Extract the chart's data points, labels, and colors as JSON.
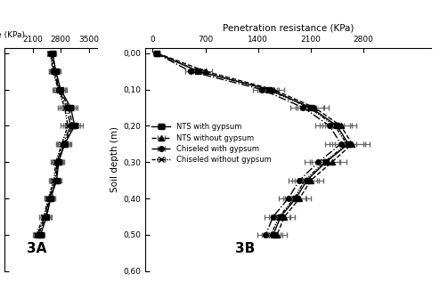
{
  "depths": [
    0.0,
    0.05,
    0.1,
    0.15,
    0.2,
    0.25,
    0.3,
    0.35,
    0.4,
    0.45,
    0.5
  ],
  "panel_A": {
    "label": "3A",
    "xlim": [
      1400,
      3700
    ],
    "xticks": [
      2100,
      2800,
      3500
    ],
    "series": {
      "NTS_with": {
        "values": [
          2600,
          2680,
          2800,
          3050,
          3150,
          2900,
          2750,
          2700,
          2550,
          2450,
          2300
        ],
        "xerr": [
          80,
          120,
          150,
          180,
          200,
          160,
          140,
          130,
          110,
          120,
          100
        ]
      },
      "NTS_without": {
        "values": [
          2580,
          2650,
          2780,
          3000,
          3100,
          2880,
          2730,
          2680,
          2530,
          2430,
          2250
        ],
        "xerr": [
          75,
          115,
          145,
          175,
          195,
          155,
          135,
          125,
          105,
          115,
          95
        ]
      },
      "Chi_with": {
        "values": [
          2560,
          2630,
          2760,
          2950,
          3050,
          2860,
          2710,
          2660,
          2510,
          2410,
          2220
        ],
        "xerr": [
          70,
          110,
          140,
          170,
          190,
          150,
          130,
          120,
          100,
          110,
          90
        ]
      },
      "Chi_without": {
        "values": [
          2540,
          2610,
          2740,
          2900,
          2980,
          2830,
          2680,
          2630,
          2490,
          2380,
          2190
        ],
        "xerr": [
          65,
          105,
          135,
          165,
          185,
          145,
          125,
          115,
          95,
          105,
          85
        ]
      }
    }
  },
  "panel_B": {
    "label": "3B",
    "xlim": [
      -100,
      3700
    ],
    "xticks": [
      0,
      700,
      1400,
      2100,
      2800
    ],
    "series": {
      "NTS_with": {
        "values": [
          50,
          600,
          1550,
          2100,
          2450,
          2600,
          2300,
          2050,
          1900,
          1700,
          1600
        ],
        "xerr": [
          30,
          80,
          130,
          180,
          200,
          220,
          190,
          160,
          140,
          130,
          120
        ]
      },
      "NTS_without": {
        "values": [
          60,
          700,
          1600,
          2150,
          2500,
          2650,
          2380,
          2100,
          1950,
          1750,
          1650
        ],
        "xerr": [
          35,
          90,
          140,
          190,
          210,
          230,
          200,
          170,
          150,
          140,
          130
        ]
      },
      "Chi_with": {
        "values": [
          40,
          500,
          1450,
          2000,
          2350,
          2500,
          2200,
          1950,
          1800,
          1600,
          1500
        ],
        "xerr": [
          25,
          70,
          120,
          170,
          190,
          210,
          180,
          150,
          130,
          120,
          110
        ]
      },
      "Chi_without": {
        "values": [
          55,
          620,
          1520,
          2080,
          2420,
          2580,
          2280,
          2020,
          1880,
          1680,
          1570
        ],
        "xerr": [
          32,
          85,
          135,
          185,
          205,
          225,
          195,
          165,
          145,
          135,
          125
        ]
      }
    }
  },
  "ylabel": "Soil depth (m)",
  "ylim": [
    0.575,
    -0.015
  ],
  "yticks": [
    0.0,
    0.1,
    0.2,
    0.3,
    0.4,
    0.5,
    0.6
  ],
  "ytick_labels": [
    "0,00",
    "0,10",
    "0,20",
    "0,30",
    "0,40",
    "0,50",
    "0,60"
  ],
  "legend_labels": [
    "NTS with gypsum",
    "NTS without gypsum",
    "Chiseled with gypsum",
    "Chiseled without gypsum"
  ],
  "markersize": 4,
  "linewidth": 1.0,
  "elinewidth": 0.8,
  "capsize": 2
}
